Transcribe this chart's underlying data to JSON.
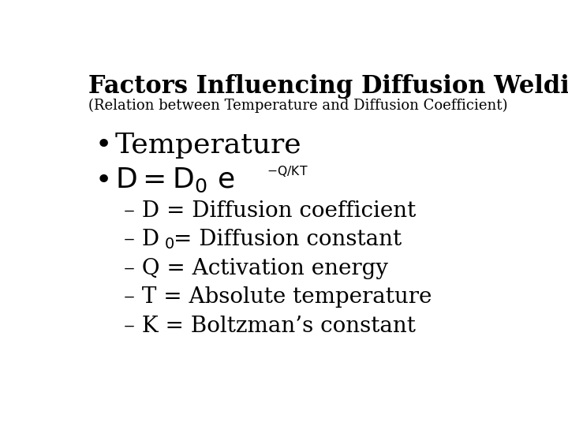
{
  "title": "Factors Influencing Diffusion Welding",
  "subtitle": "(Relation between Temperature and Diffusion Coefficient)",
  "background_color": "#ffffff",
  "text_color": "#000000",
  "title_fontsize": 22,
  "subtitle_fontsize": 13,
  "bullet1": "Temperature",
  "sub1": "– D = Diffusion coefficient",
  "sub3": "– Q = Activation energy",
  "sub4": "– T = Absolute temperature",
  "sub5": "– K = Boltzman’s constant",
  "bullet_fontsize": 26,
  "sub_fontsize": 20
}
